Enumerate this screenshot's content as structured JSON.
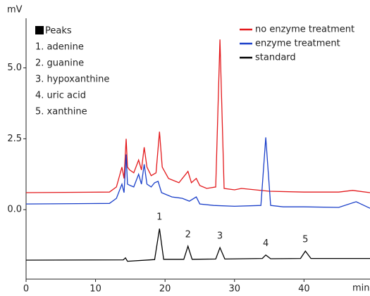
{
  "chart_data": {
    "type": "line",
    "y_label": "mV",
    "x_label": "min",
    "xlim": [
      0,
      49.5
    ],
    "xticks": [
      0,
      10,
      20,
      30,
      40
    ],
    "ylim": [
      -2.45,
      6.75
    ],
    "yticks": [
      {
        "value": 0,
        "label": "0.0"
      },
      2.5,
      {
        "value": 5,
        "label": "5.0"
      }
    ],
    "legend_position": "upper right",
    "series": [
      {
        "name": "no enzyme treatment",
        "color": "#e3191c",
        "x": [
          0,
          12,
          13,
          13.8,
          14.1,
          14.4,
          14.6,
          14.9,
          15.5,
          16.2,
          16.6,
          17,
          17.4,
          18,
          18.7,
          19.2,
          19.6,
          20.5,
          22,
          23.3,
          23.8,
          24.5,
          25,
          26,
          27.3,
          27.9,
          28.5,
          30,
          31,
          35,
          40,
          45,
          47,
          49.5
        ],
        "values": [
          0.6,
          0.62,
          0.8,
          1.5,
          1.1,
          2.5,
          1.5,
          1.4,
          1.3,
          1.75,
          1.4,
          2.2,
          1.5,
          1.2,
          1.3,
          2.75,
          1.5,
          1.1,
          0.95,
          1.35,
          0.95,
          1.1,
          0.85,
          0.75,
          0.8,
          6.0,
          0.75,
          0.7,
          0.75,
          0.65,
          0.62,
          0.62,
          0.68,
          0.6
        ]
      },
      {
        "name": "enzyme treatment",
        "color": "#1a3fc9",
        "x": [
          0,
          12,
          13,
          13.8,
          14.1,
          14.4,
          14.6,
          15,
          15.5,
          16.2,
          16.6,
          17,
          17.4,
          18,
          18.5,
          19,
          19.5,
          21,
          22.5,
          23.5,
          24.5,
          25,
          27,
          30,
          33.8,
          34.5,
          35.2,
          37,
          40,
          45,
          47.5,
          49.5
        ],
        "values": [
          0.2,
          0.22,
          0.4,
          0.9,
          0.6,
          1.95,
          0.9,
          0.85,
          0.8,
          1.25,
          0.9,
          1.6,
          0.9,
          0.8,
          0.95,
          1.0,
          0.6,
          0.45,
          0.4,
          0.3,
          0.45,
          0.2,
          0.15,
          0.12,
          0.15,
          2.55,
          0.15,
          0.1,
          0.1,
          0.08,
          0.28,
          0.05
        ]
      },
      {
        "name": "standard",
        "color": "#000000",
        "x": [
          0,
          14,
          14.3,
          14.6,
          18.5,
          19.2,
          19.8,
          22.7,
          23.3,
          23.9,
          27.3,
          27.9,
          28.6,
          34,
          34.5,
          35.2,
          39.5,
          40.2,
          41,
          49.5
        ],
        "values": [
          -1.78,
          -1.77,
          -1.7,
          -1.82,
          -1.76,
          -0.67,
          -1.75,
          -1.75,
          -1.29,
          -1.75,
          -1.74,
          -1.34,
          -1.74,
          -1.72,
          -1.6,
          -1.73,
          -1.72,
          -1.46,
          -1.72,
          -1.72
        ]
      }
    ],
    "annotations": [
      {
        "text": "1",
        "x": 19.2
      },
      {
        "text": "2",
        "x": 23.3
      },
      {
        "text": "3",
        "x": 27.9
      },
      {
        "text": "4",
        "x": 34.5
      },
      {
        "text": "5",
        "x": 40.2
      }
    ],
    "peaks_box": {
      "title": "Peaks",
      "items": [
        "1. adenine",
        "2. guanine",
        "3. hypoxanthine",
        "4. uric acid",
        "5. xanthine"
      ]
    }
  }
}
